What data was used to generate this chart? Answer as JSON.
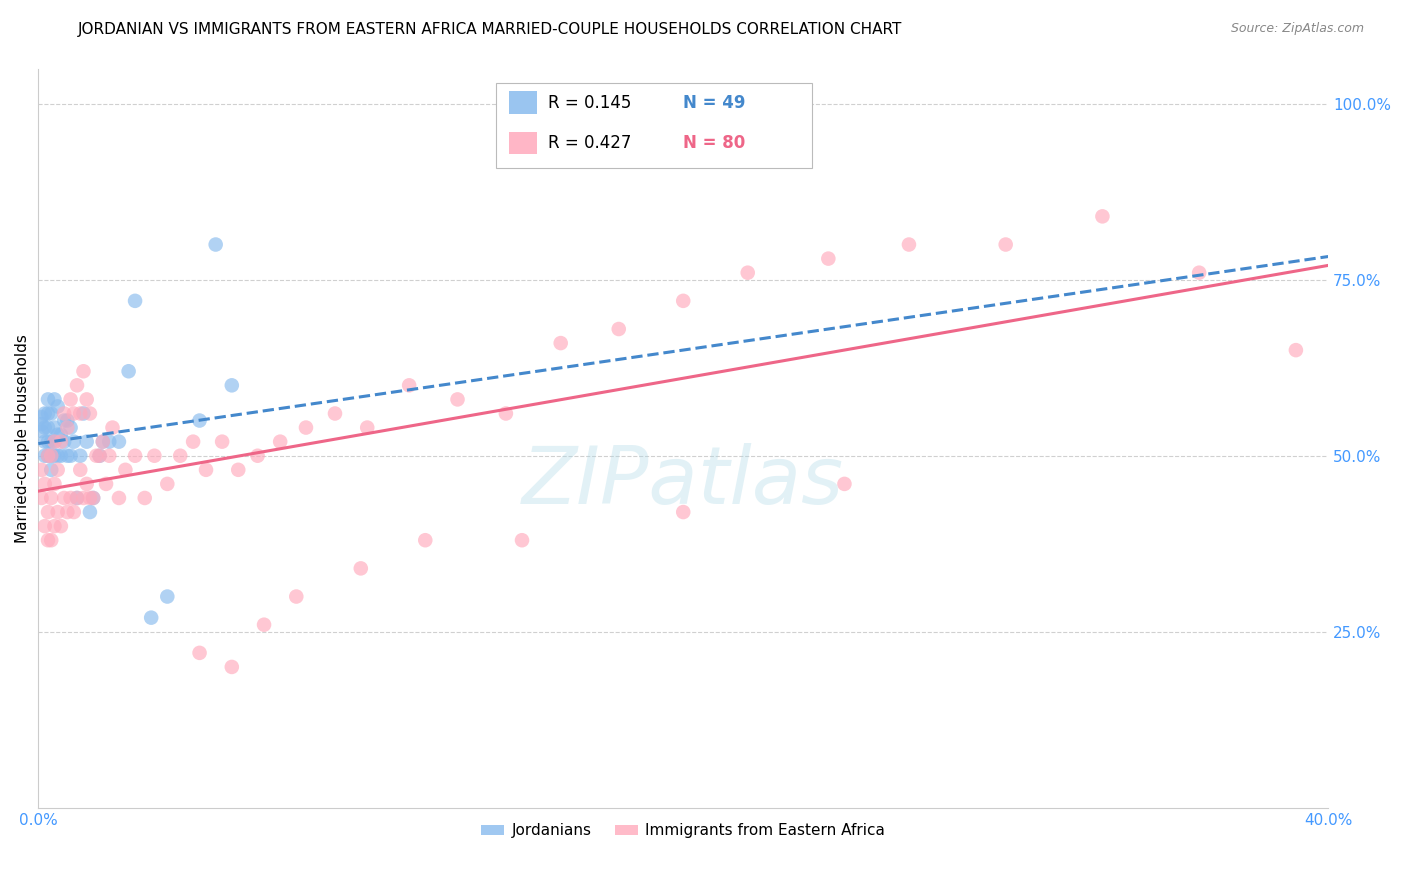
{
  "title": "JORDANIAN VS IMMIGRANTS FROM EASTERN AFRICA MARRIED-COUPLE HOUSEHOLDS CORRELATION CHART",
  "source": "Source: ZipAtlas.com",
  "ylabel": "Married-couple Households",
  "xlim": [
    0.0,
    0.4
  ],
  "ylim": [
    0.0,
    1.05
  ],
  "yticks_right": [
    0.25,
    0.5,
    0.75,
    1.0
  ],
  "ytick_labels_right": [
    "25.0%",
    "50.0%",
    "75.0%",
    "100.0%"
  ],
  "grid_color": "#d0d0d0",
  "background_color": "#ffffff",
  "watermark": "ZIPatlas",
  "watermark_color": "#add8e6",
  "tick_label_color": "#4499ff",
  "tick_label_fontsize": 11,
  "title_fontsize": 11,
  "axis_label_fontsize": 11,
  "series": [
    {
      "label": "Jordanians",
      "R": 0.145,
      "N": 49,
      "color": "#88bbee",
      "trend_color": "#4488cc",
      "trend_style": "dashed",
      "x": [
        0.001,
        0.001,
        0.001,
        0.002,
        0.002,
        0.002,
        0.002,
        0.003,
        0.003,
        0.003,
        0.003,
        0.003,
        0.004,
        0.004,
        0.004,
        0.004,
        0.005,
        0.005,
        0.005,
        0.005,
        0.006,
        0.006,
        0.006,
        0.007,
        0.007,
        0.008,
        0.008,
        0.009,
        0.009,
        0.01,
        0.01,
        0.011,
        0.012,
        0.013,
        0.014,
        0.015,
        0.016,
        0.017,
        0.019,
        0.02,
        0.022,
        0.025,
        0.028,
        0.03,
        0.035,
        0.04,
        0.05,
        0.055,
        0.06
      ],
      "y": [
        0.535,
        0.545,
        0.555,
        0.5,
        0.52,
        0.54,
        0.56,
        0.5,
        0.52,
        0.54,
        0.56,
        0.58,
        0.48,
        0.5,
        0.52,
        0.56,
        0.5,
        0.52,
        0.54,
        0.58,
        0.5,
        0.53,
        0.57,
        0.5,
        0.53,
        0.52,
        0.55,
        0.5,
        0.55,
        0.5,
        0.54,
        0.52,
        0.44,
        0.5,
        0.56,
        0.52,
        0.42,
        0.44,
        0.5,
        0.52,
        0.52,
        0.52,
        0.62,
        0.72,
        0.27,
        0.3,
        0.55,
        0.8,
        0.6
      ]
    },
    {
      "label": "Immigrants from Eastern Africa",
      "R": 0.427,
      "N": 80,
      "color": "#ffaabc",
      "trend_color": "#ee6688",
      "trend_style": "solid",
      "x": [
        0.001,
        0.001,
        0.002,
        0.002,
        0.003,
        0.003,
        0.003,
        0.004,
        0.004,
        0.004,
        0.005,
        0.005,
        0.005,
        0.006,
        0.006,
        0.007,
        0.007,
        0.008,
        0.008,
        0.009,
        0.009,
        0.01,
        0.01,
        0.011,
        0.011,
        0.012,
        0.012,
        0.013,
        0.013,
        0.014,
        0.014,
        0.015,
        0.015,
        0.016,
        0.016,
        0.017,
        0.018,
        0.019,
        0.02,
        0.021,
        0.022,
        0.023,
        0.025,
        0.027,
        0.03,
        0.033,
        0.036,
        0.04,
        0.044,
        0.048,
        0.052,
        0.057,
        0.062,
        0.068,
        0.075,
        0.083,
        0.092,
        0.102,
        0.115,
        0.13,
        0.145,
        0.162,
        0.18,
        0.2,
        0.22,
        0.245,
        0.27,
        0.3,
        0.33,
        0.36,
        0.39,
        0.05,
        0.06,
        0.07,
        0.08,
        0.1,
        0.12,
        0.15,
        0.2,
        0.25
      ],
      "y": [
        0.44,
        0.48,
        0.4,
        0.46,
        0.38,
        0.42,
        0.5,
        0.38,
        0.44,
        0.5,
        0.4,
        0.46,
        0.52,
        0.42,
        0.48,
        0.4,
        0.52,
        0.44,
        0.56,
        0.42,
        0.54,
        0.44,
        0.58,
        0.42,
        0.56,
        0.44,
        0.6,
        0.48,
        0.56,
        0.44,
        0.62,
        0.46,
        0.58,
        0.44,
        0.56,
        0.44,
        0.5,
        0.5,
        0.52,
        0.46,
        0.5,
        0.54,
        0.44,
        0.48,
        0.5,
        0.44,
        0.5,
        0.46,
        0.5,
        0.52,
        0.48,
        0.52,
        0.48,
        0.5,
        0.52,
        0.54,
        0.56,
        0.54,
        0.6,
        0.58,
        0.56,
        0.66,
        0.68,
        0.72,
        0.76,
        0.78,
        0.8,
        0.8,
        0.84,
        0.76,
        0.65,
        0.22,
        0.2,
        0.26,
        0.3,
        0.34,
        0.38,
        0.38,
        0.42,
        0.46
      ]
    }
  ]
}
